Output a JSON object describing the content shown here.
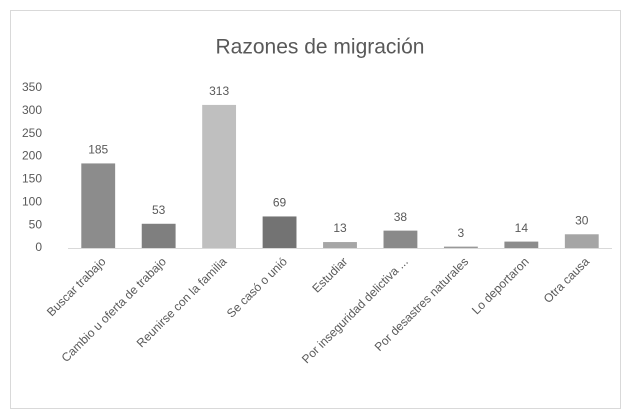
{
  "chart_data": {
    "type": "bar",
    "title": "Razones de migración",
    "categories": [
      "Buscar trabajo",
      "Cambio u oferta de trabajo",
      "Reunirse con la familia",
      "Se casó o unió",
      "Estudiar",
      "Por inseguridad delictiva ...",
      "Por desastres naturales",
      "Lo deportaron",
      "Otra causa"
    ],
    "values": [
      185,
      53,
      313,
      69,
      13,
      38,
      3,
      14,
      30
    ],
    "colors": [
      "#8c8c8c",
      "#7f7f7f",
      "#bfbfbf",
      "#737373",
      "#a6a6a6",
      "#8a8a8a",
      "#999999",
      "#8c8c8c",
      "#a5a5a5"
    ],
    "ylim": [
      0,
      350
    ],
    "yticks": [
      0,
      50,
      100,
      150,
      200,
      250,
      300,
      350
    ],
    "grid": false
  }
}
